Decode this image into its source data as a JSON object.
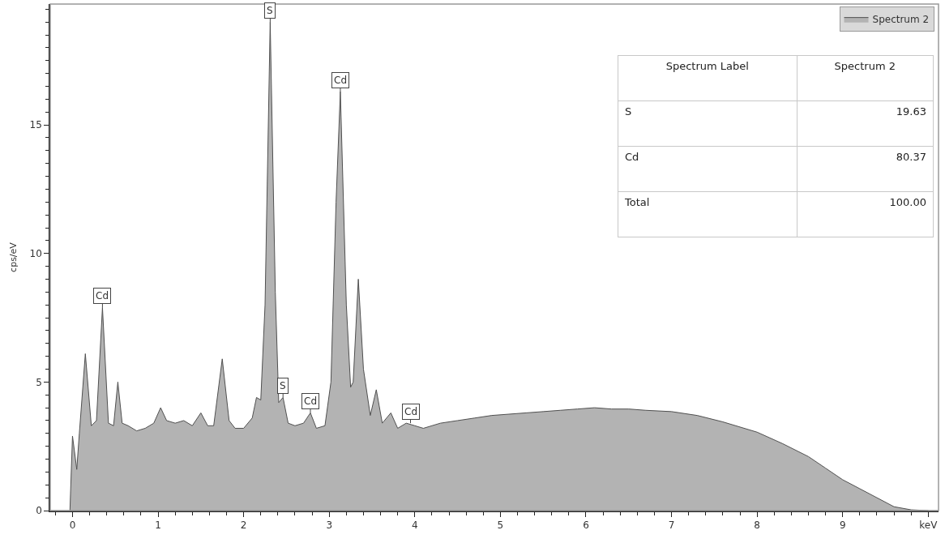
{
  "chart_data": {
    "type": "area",
    "ylabel": "cps/eV",
    "x": [
      -0.03,
      0,
      0.05,
      0.08,
      0.15,
      0.22,
      0.28,
      0.35,
      0.42,
      0.48,
      0.53,
      0.58,
      0.65,
      0.75,
      0.85,
      0.95,
      1.03,
      1.1,
      1.2,
      1.3,
      1.4,
      1.5,
      1.58,
      1.65,
      1.75,
      1.83,
      1.9,
      2,
      2.1,
      2.15,
      2.2,
      2.25,
      2.31,
      2.37,
      2.41,
      2.46,
      2.52,
      2.6,
      2.7,
      2.78,
      2.85,
      2.95,
      3.02,
      3.08,
      3.13,
      3.2,
      3.25,
      3.28,
      3.34,
      3.4,
      3.48,
      3.55,
      3.62,
      3.72,
      3.8,
      3.9,
      4,
      4.1,
      4.3,
      4.5,
      4.7,
      4.9,
      5.1,
      5.3,
      5.5,
      5.7,
      5.9,
      6.1,
      6.3,
      6.5,
      6.7,
      7,
      7.3,
      7.6,
      8,
      8.3,
      8.6,
      8.8,
      9,
      9.2,
      9.4,
      9.6,
      9.8,
      10
    ],
    "series": [
      {
        "name": "Spectrum 2",
        "color": "#b3b3b3",
        "values": [
          0,
          2.9,
          1.6,
          3,
          6.1,
          3.3,
          3.5,
          7.9,
          3.4,
          3.3,
          5,
          3.4,
          3.3,
          3.1,
          3.2,
          3.4,
          4,
          3.5,
          3.4,
          3.5,
          3.3,
          3.8,
          3.3,
          3.3,
          5.9,
          3.5,
          3.2,
          3.2,
          3.6,
          4.4,
          4.3,
          8,
          19,
          8.5,
          4.2,
          4.4,
          3.4,
          3.3,
          3.4,
          3.8,
          3.2,
          3.3,
          5,
          12,
          16.3,
          8,
          4.8,
          5,
          9,
          5.5,
          3.7,
          4.7,
          3.4,
          3.8,
          3.2,
          3.4,
          3.3,
          3.2,
          3.4,
          3.5,
          3.6,
          3.7,
          3.75,
          3.8,
          3.85,
          3.9,
          3.95,
          4,
          3.95,
          3.95,
          3.9,
          3.85,
          3.7,
          3.45,
          3.05,
          2.6,
          2.1,
          1.65,
          1.2,
          0.85,
          0.5,
          0.15,
          0.03,
          0
        ]
      }
    ],
    "xlim": [
      -0.26,
      10.12
    ],
    "ylim": [
      0,
      19.7
    ],
    "xticks": [
      0,
      1,
      2,
      3,
      4,
      5,
      6,
      7,
      8,
      9,
      {
        "value": 10,
        "label": "keV"
      }
    ],
    "yticks": [
      0,
      5,
      10,
      15
    ],
    "grid": false,
    "legend": "top right",
    "annotations": [
      {
        "text": "S",
        "x": 2.31,
        "y": 19
      },
      {
        "text": "Cd",
        "x": 3.13,
        "y": 16.3
      },
      {
        "text": "Cd",
        "x": 0.35,
        "y": 7.9
      },
      {
        "text": "S",
        "x": 2.46,
        "y": 4.4
      },
      {
        "text": "Cd",
        "x": 2.78,
        "y": 3.8
      },
      {
        "text": "Cd",
        "x": 3.95,
        "y": 3.4
      },
      "Spectrum Label",
      "Spectrum 2",
      "S",
      "19.63",
      "Cd",
      "80.37",
      "Total",
      "100.00"
    ]
  }
}
